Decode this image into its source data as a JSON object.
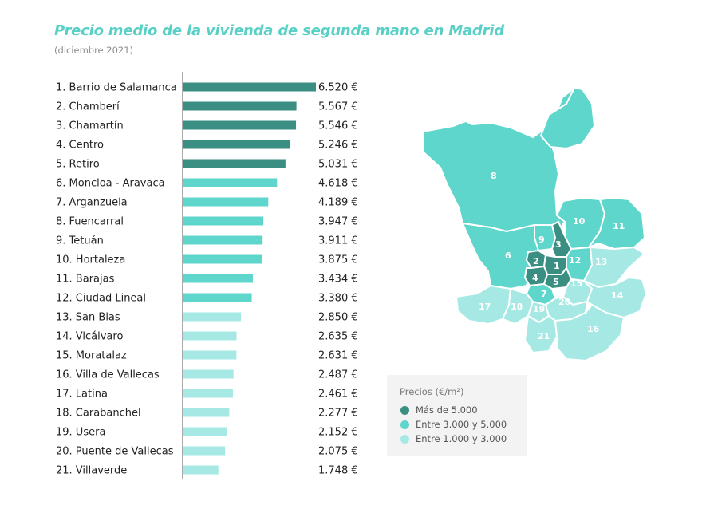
{
  "chart_data": {
    "type": "bar",
    "orientation": "horizontal",
    "title": "Precio medio de la vivienda de segunda mano en Madrid",
    "subtitle": "(diciembre 2021)",
    "categories": [
      "1. Barrio de Salamanca",
      "2. Chamberí",
      "3. Chamartín",
      "4. Centro",
      "5. Retiro",
      "6. Moncloa - Aravaca",
      "7. Arganzuela",
      "8. Fuencarral",
      "9. Tetuán",
      "10. Hortaleza",
      "11. Barajas",
      "12. Ciudad Lineal",
      "13. San Blas",
      "14. Vicálvaro",
      "15. Moratalaz",
      "16. Villa de Vallecas",
      "17. Latina",
      "18. Carabanchel",
      "19. Usera",
      "20. Puente de Vallecas",
      "21. Villaverde"
    ],
    "values": [
      6520,
      5567,
      5546,
      5246,
      5031,
      4618,
      4189,
      3947,
      3911,
      3875,
      3434,
      3380,
      2850,
      2635,
      2631,
      2487,
      2461,
      2277,
      2152,
      2075,
      1748
    ],
    "value_labels": [
      "6.520 €",
      "5.567 €",
      "5.546 €",
      "5.246 €",
      "5.031 €",
      "4.618 €",
      "4.189 €",
      "3.947 €",
      "3.911 €",
      "3.875 €",
      "3.434 €",
      "3.380 €",
      "2.850 €",
      "2.635 €",
      "2.631 €",
      "2.487 €",
      "2.461 €",
      "2.277 €",
      "2.152 €",
      "2.075 €",
      "1.748 €"
    ],
    "xlim": [
      0,
      6520
    ],
    "grid": false,
    "legend": {
      "title": "Precios (€/m²)",
      "placement": "bottom-right",
      "items": [
        {
          "label": "Más de 5.000",
          "color": "#3a8f82"
        },
        {
          "label": "Entre 3.000 y 5.000",
          "color": "#5fd6cc"
        },
        {
          "label": "Entre 1.000 y 3.000",
          "color": "#a6e9e4"
        }
      ]
    }
  },
  "map": {
    "district_labels": [
      "1",
      "2",
      "3",
      "4",
      "5",
      "6",
      "7",
      "8",
      "9",
      "10",
      "11",
      "12",
      "13",
      "14",
      "15",
      "16",
      "17",
      "18",
      "19",
      "20",
      "21"
    ]
  }
}
